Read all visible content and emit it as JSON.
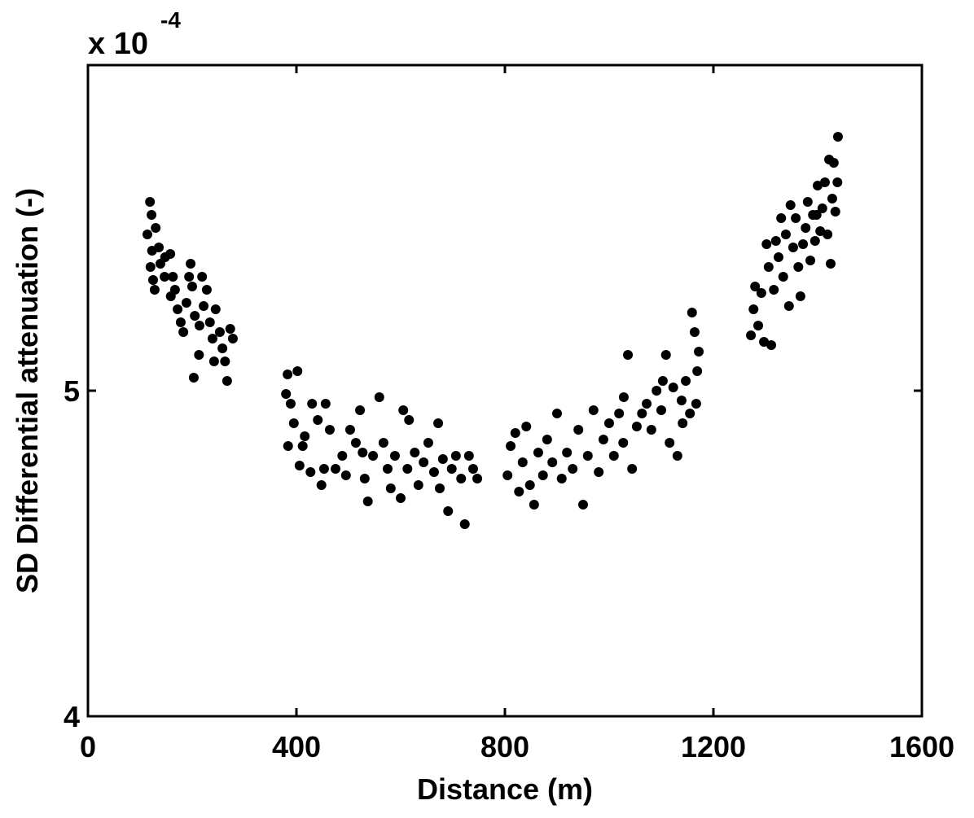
{
  "chart_data": {
    "type": "scatter",
    "y_exponent_base": "x 10",
    "y_exponent": "-4",
    "xlabel": "Distance (m)",
    "ylabel": "SD Differential attenuation (-)",
    "xlim": [
      0,
      1600
    ],
    "xticks": [
      0,
      400,
      800,
      1200,
      1600
    ],
    "ylim": [
      4,
      6
    ],
    "yticks": [
      4,
      5
    ],
    "grid": false,
    "series": [
      {
        "color": "#000000",
        "x": [
          119,
          122,
          130,
          114,
          123,
          136,
          120,
          139,
          148,
          158,
          125,
          128,
          147,
          159,
          167,
          172,
          178,
          183,
          189,
          194,
          200,
          205,
          214,
          219,
          222,
          228,
          234,
          239,
          245,
          253,
          258,
          263,
          267,
          273,
          278,
          203,
          213,
          242,
          197,
          163,
          383,
          402,
          380,
          389,
          384,
          395,
          406,
          416,
          427,
          430,
          441,
          448,
          456,
          464,
          475,
          488,
          495,
          503,
          514,
          522,
          531,
          537,
          547,
          559,
          567,
          575,
          581,
          589,
          600,
          605,
          616,
          627,
          634,
          644,
          653,
          664,
          672,
          681,
          691,
          698,
          706,
          716,
          723,
          731,
          739,
          747,
          412,
          453,
          527,
          613,
          675,
          805,
          811,
          820,
          827,
          834,
          841,
          848,
          856,
          864,
          873,
          881,
          891,
          900,
          909,
          919,
          930,
          941,
          950,
          959,
          970,
          980,
          989,
          1000,
          1009,
          1019,
          1028,
          1036,
          1044,
          1053,
          1063,
          1072,
          1081,
          1091,
          1100,
          1109,
          1116,
          1123,
          1131,
          1139,
          1147,
          1155,
          1159,
          1164,
          1169,
          1172,
          1167,
          1141,
          1103,
          1027,
          1272,
          1277,
          1280,
          1286,
          1292,
          1297,
          1302,
          1306,
          1311,
          1316,
          1320,
          1325,
          1330,
          1334,
          1339,
          1345,
          1348,
          1353,
          1358,
          1363,
          1367,
          1372,
          1377,
          1381,
          1386,
          1391,
          1395,
          1400,
          1405,
          1409,
          1414,
          1419,
          1422,
          1425,
          1428,
          1431,
          1434,
          1438,
          1439,
          1398
        ],
        "y": [
          5.58,
          5.54,
          5.5,
          5.48,
          5.43,
          5.44,
          5.38,
          5.39,
          5.41,
          5.42,
          5.34,
          5.31,
          5.35,
          5.29,
          5.31,
          5.25,
          5.21,
          5.18,
          5.27,
          5.35,
          5.32,
          5.23,
          5.2,
          5.35,
          5.26,
          5.31,
          5.21,
          5.16,
          5.25,
          5.18,
          5.13,
          5.09,
          5.03,
          5.19,
          5.16,
          5.04,
          5.11,
          5.09,
          5.39,
          5.35,
          5.05,
          5.06,
          4.99,
          4.96,
          4.83,
          4.9,
          4.77,
          4.86,
          4.75,
          4.96,
          4.91,
          4.71,
          4.96,
          4.88,
          4.76,
          4.8,
          4.74,
          4.88,
          4.84,
          4.94,
          4.73,
          4.66,
          4.8,
          4.98,
          4.84,
          4.76,
          4.7,
          4.8,
          4.67,
          4.94,
          4.91,
          4.81,
          4.71,
          4.78,
          4.84,
          4.75,
          4.9,
          4.79,
          4.63,
          4.76,
          4.8,
          4.73,
          4.59,
          4.8,
          4.76,
          4.73,
          4.83,
          4.76,
          4.81,
          4.76,
          4.7,
          4.74,
          4.83,
          4.87,
          4.69,
          4.78,
          4.89,
          4.71,
          4.65,
          4.81,
          4.74,
          4.85,
          4.78,
          4.93,
          4.73,
          4.81,
          4.76,
          4.88,
          4.65,
          4.8,
          4.94,
          4.75,
          4.85,
          4.9,
          4.8,
          4.93,
          4.98,
          5.11,
          4.76,
          4.89,
          4.93,
          4.96,
          4.88,
          5.0,
          4.94,
          5.11,
          4.84,
          5.01,
          4.8,
          4.97,
          5.03,
          4.93,
          5.24,
          5.18,
          5.06,
          5.12,
          4.96,
          4.9,
          5.03,
          4.84,
          5.17,
          5.25,
          5.32,
          5.2,
          5.3,
          5.15,
          5.45,
          5.38,
          5.14,
          5.31,
          5.46,
          5.41,
          5.53,
          5.35,
          5.48,
          5.26,
          5.57,
          5.44,
          5.53,
          5.38,
          5.29,
          5.45,
          5.5,
          5.58,
          5.4,
          5.54,
          5.46,
          5.63,
          5.49,
          5.56,
          5.64,
          5.48,
          5.71,
          5.39,
          5.59,
          5.7,
          5.55,
          5.64,
          5.78,
          5.54
        ]
      }
    ]
  }
}
